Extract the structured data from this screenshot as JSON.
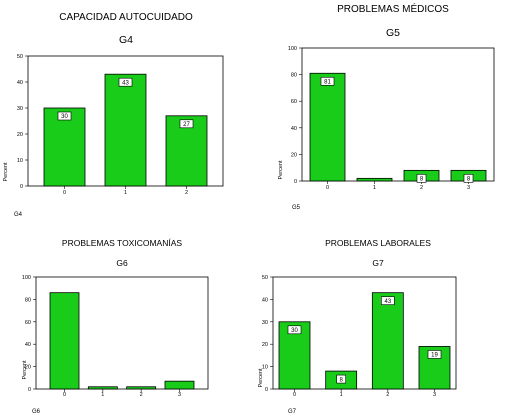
{
  "colors": {
    "bar_fill": "#19cc19",
    "bar_stroke": "#000000",
    "label_bg": "#ffffff",
    "frame": "#000000"
  },
  "chart_data": [
    {
      "type": "bar",
      "title": "CAPACIDAD AUTOCUIDADO",
      "subtitle": "G4",
      "footnote": "G4",
      "ylabel": "Percent",
      "categories": [
        "0",
        "1",
        "2"
      ],
      "values": [
        30,
        43,
        27
      ],
      "data_labels": [
        "30",
        "43",
        "27"
      ],
      "ylim": [
        0,
        50
      ],
      "yticks": [
        "0",
        "10",
        "20",
        "30",
        "40",
        "50"
      ]
    },
    {
      "type": "bar",
      "title": "PROBLEMAS MÉDICOS",
      "subtitle": "G5",
      "footnote": "G5",
      "ylabel": "Percent",
      "categories": [
        "0",
        "1",
        "2",
        "3"
      ],
      "values": [
        81,
        2,
        8,
        8
      ],
      "data_labels": [
        "81",
        "",
        "8",
        "8"
      ],
      "ylim": [
        0,
        100
      ],
      "yticks": [
        "0",
        "20",
        "40",
        "60",
        "80",
        "100"
      ]
    },
    {
      "type": "bar",
      "title": "PROBLEMAS TOXICOMANÍAS",
      "subtitle": "G6",
      "footnote": "G6",
      "ylabel": "Percent",
      "categories": [
        "0",
        "1",
        "2",
        "3"
      ],
      "values": [
        86,
        2,
        2,
        7
      ],
      "data_labels": [
        "",
        "",
        "",
        ""
      ],
      "ylim": [
        0,
        100
      ],
      "yticks": [
        "0",
        "20",
        "40",
        "60",
        "80",
        "100"
      ]
    },
    {
      "type": "bar",
      "title": "PROBLEMAS LABORALES",
      "subtitle": "G7",
      "footnote": "G7",
      "ylabel": "Percent",
      "categories": [
        "0",
        "1",
        "2",
        "3"
      ],
      "values": [
        30,
        8,
        43,
        19
      ],
      "data_labels": [
        "30",
        "8",
        "43",
        "19"
      ],
      "ylim": [
        0,
        50
      ],
      "yticks": [
        "0",
        "10",
        "20",
        "30",
        "40",
        "50"
      ]
    }
  ]
}
